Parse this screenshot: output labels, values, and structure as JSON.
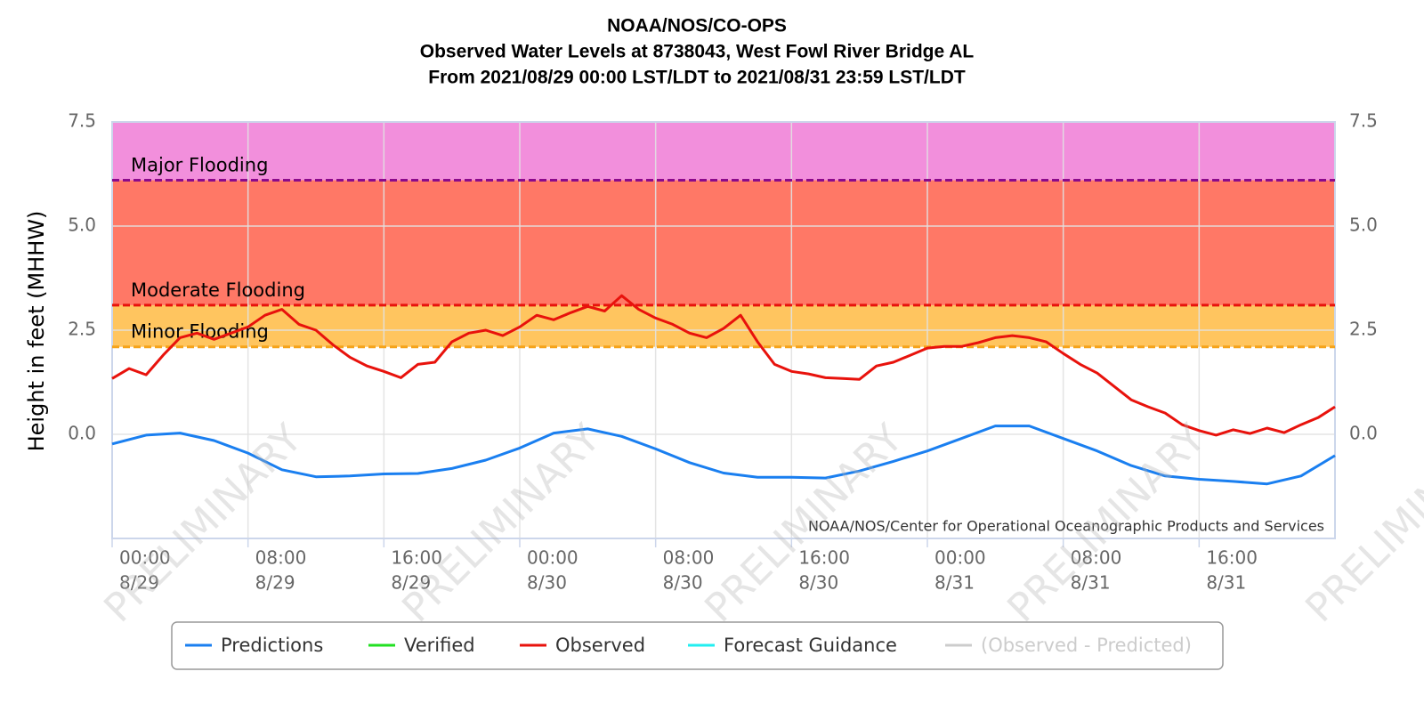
{
  "chart_data": {
    "type": "line",
    "title": [
      "NOAA/NOS/CO-OPS",
      "Observed Water Levels at 8738043, West Fowl River Bridge AL",
      "From 2021/08/29 00:00 LST/LDT to 2021/08/31 23:59 LST/LDT"
    ],
    "y_label": "Height in feet (MHHW)",
    "credit": "NOAA/NOS/Center for Operational Oceanographic Products and Services",
    "watermark": "PRELIMINARY",
    "xlim": [
      0,
      72
    ],
    "xticks": [
      {
        "value": 0,
        "label": [
          "00:00",
          "8/29"
        ]
      },
      {
        "value": 8,
        "label": [
          "08:00",
          "8/29"
        ]
      },
      {
        "value": 16,
        "label": [
          "16:00",
          "8/29"
        ]
      },
      {
        "value": 24,
        "label": [
          "00:00",
          "8/30"
        ]
      },
      {
        "value": 32,
        "label": [
          "08:00",
          "8/30"
        ]
      },
      {
        "value": 40,
        "label": [
          "16:00",
          "8/30"
        ]
      },
      {
        "value": 48,
        "label": [
          "00:00",
          "8/31"
        ]
      },
      {
        "value": 56,
        "label": [
          "08:00",
          "8/31"
        ]
      },
      {
        "value": 64,
        "label": [
          "16:00",
          "8/31"
        ]
      }
    ],
    "ylim": [
      -2.5,
      7.5
    ],
    "yticks": [
      {
        "value": 0,
        "label": "0.0"
      },
      2.5,
      {
        "value": 5,
        "label": "5.0"
      },
      7.5
    ],
    "grid": true,
    "thresholds": [
      {
        "name": "Minor Flooding",
        "value": 2.1,
        "color": "#f5a31a",
        "band": "#ffc55f"
      },
      {
        "name": "Moderate Flooding",
        "value": 3.1,
        "color": "#e8120c",
        "band": "#ff7866"
      },
      {
        "name": "Major Flooding",
        "value": 6.1,
        "color": "#8b0a8b",
        "band": "#f28fdc"
      }
    ],
    "series": [
      {
        "name": "Predictions",
        "color": "#1a7ff0",
        "x": [
          0,
          2,
          4,
          6,
          8,
          10,
          12,
          14,
          16,
          18,
          20,
          22,
          24,
          26,
          28,
          30,
          32,
          34,
          36,
          38,
          40,
          42,
          44,
          46,
          48,
          50,
          52,
          54,
          56,
          58,
          60,
          62,
          64,
          66,
          68,
          70,
          72
        ],
        "values": [
          -0.23,
          -0.02,
          0.03,
          -0.15,
          -0.45,
          -0.85,
          -1.02,
          -1.0,
          -0.95,
          -0.94,
          -0.82,
          -0.62,
          -0.33,
          0.03,
          0.13,
          -0.05,
          -0.35,
          -0.68,
          -0.93,
          -1.03,
          -1.03,
          -1.05,
          -0.88,
          -0.65,
          -0.4,
          -0.1,
          0.2,
          0.2,
          -0.1,
          -0.4,
          -0.75,
          -1.0,
          -1.08,
          -1.13,
          -1.19,
          -1.0,
          -0.51
        ]
      },
      {
        "name": "Verified",
        "color": "#22e022",
        "x": [],
        "values": []
      },
      {
        "name": "Observed",
        "color": "#e8120c",
        "x": [
          0,
          1,
          2,
          3,
          4,
          5,
          6,
          7,
          8,
          9,
          10,
          11,
          12,
          13,
          14,
          15,
          16,
          17,
          18,
          19,
          20,
          21,
          22,
          23,
          24,
          25,
          26,
          27,
          28,
          29,
          30,
          31,
          32,
          33,
          34,
          35,
          36,
          37,
          38,
          39,
          40,
          41,
          42,
          43,
          44,
          45,
          46,
          47,
          48,
          49,
          50,
          51,
          52,
          53,
          54,
          55,
          56,
          57,
          58,
          59,
          60,
          61,
          62,
          63,
          64,
          65,
          66,
          67,
          68,
          69,
          70,
          71,
          72
        ],
        "values": [
          1.34,
          1.58,
          1.43,
          1.9,
          2.32,
          2.43,
          2.28,
          2.43,
          2.58,
          2.86,
          3.0,
          2.64,
          2.5,
          2.15,
          1.85,
          1.64,
          1.51,
          1.36,
          1.68,
          1.73,
          2.22,
          2.43,
          2.5,
          2.37,
          2.58,
          2.86,
          2.75,
          2.92,
          3.07,
          2.96,
          3.33,
          3.0,
          2.79,
          2.64,
          2.43,
          2.32,
          2.54,
          2.86,
          2.22,
          1.68,
          1.51,
          1.45,
          1.36,
          1.34,
          1.32,
          1.64,
          1.73,
          1.9,
          2.07,
          2.11,
          2.11,
          2.2,
          2.32,
          2.37,
          2.32,
          2.22,
          1.94,
          1.68,
          1.47,
          1.15,
          0.83,
          0.66,
          0.51,
          0.23,
          0.09,
          -0.02,
          0.11,
          0.02,
          0.15,
          0.04,
          0.23,
          0.4,
          0.66
        ]
      },
      {
        "name": "Forecast Guidance",
        "color": "#22eef0",
        "x": [],
        "values": []
      },
      {
        "name": "(Observed - Predicted)",
        "color": "#cccccc",
        "x": [],
        "values": [],
        "hidden": true
      }
    ]
  }
}
